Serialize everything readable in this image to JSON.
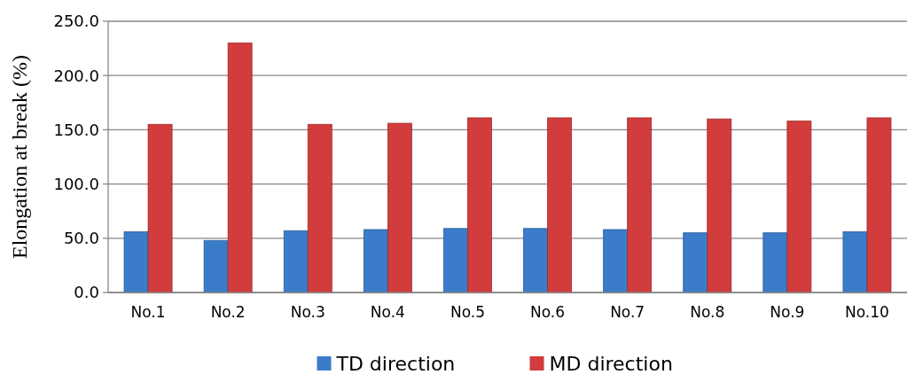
{
  "chart_data": {
    "type": "bar",
    "ylabel": "Elongation at break (%)",
    "categories": [
      "No.1",
      "No.2",
      "No.3",
      "No.4",
      "No.5",
      "No.6",
      "No.7",
      "No.8",
      "No.9",
      "No.10"
    ],
    "series": [
      {
        "name": "TD direction",
        "color": "#3a7cc9",
        "values": [
          56,
          48,
          57,
          58,
          59,
          59,
          58,
          55,
          55,
          56
        ]
      },
      {
        "name": "MD direction",
        "color": "#d23c3c",
        "values": [
          155,
          230,
          155,
          156,
          161,
          161,
          161,
          160,
          158,
          161
        ]
      }
    ],
    "ylim": [
      0,
      250
    ],
    "yticks": [
      {
        "value": 0,
        "label": "0.0"
      },
      {
        "value": 50,
        "label": "50.0"
      },
      {
        "value": 100,
        "label": "100.0"
      },
      {
        "value": 150,
        "label": "150.0"
      },
      {
        "value": 200,
        "label": "200.0"
      },
      {
        "value": 250,
        "label": "250.0"
      }
    ],
    "grid": "y",
    "legend": "bottom"
  }
}
